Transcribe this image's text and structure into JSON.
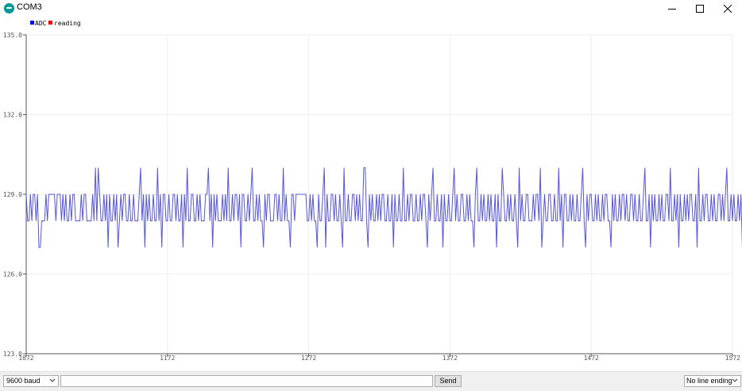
{
  "window": {
    "title": "COM3",
    "icon": "arduino-icon",
    "controls": [
      "minimize-icon",
      "maximize-icon",
      "close-icon"
    ]
  },
  "legend": {
    "items": [
      {
        "label": "ADC",
        "color": "#0000ff"
      },
      {
        "label": "reading",
        "color": "#ff0000"
      }
    ]
  },
  "chart_data": {
    "type": "line",
    "ylim": [
      123.0,
      135.0
    ],
    "xlim": [
      1072,
      1572
    ],
    "yticks": [
      "135.0",
      "132.0",
      "129.0",
      "126.0",
      "123.0"
    ],
    "ytick_values": [
      135,
      132,
      129,
      126,
      123
    ],
    "xticks": [
      "1072",
      "1172",
      "1272",
      "1372",
      "1472",
      "1572"
    ],
    "xtick_values": [
      1072,
      1172,
      1272,
      1372,
      1472,
      1572
    ],
    "grid": true,
    "legend_position": "top-left",
    "series": [
      {
        "name": "ADC",
        "color": "#5555dd",
        "x_start": 1072,
        "x_step": 1,
        "values": [
          129,
          128,
          128,
          129,
          128,
          129,
          129,
          128,
          129,
          127,
          127,
          128,
          128,
          128,
          129,
          128,
          129,
          129,
          129,
          129,
          129,
          128,
          129,
          129,
          129,
          128,
          129,
          128,
          129,
          128,
          128,
          129,
          128,
          129,
          129,
          128,
          128,
          128,
          128,
          129,
          128,
          129,
          129,
          128,
          128,
          128,
          128,
          129,
          128,
          130,
          128,
          130,
          129,
          128,
          128,
          129,
          128,
          129,
          127,
          129,
          128,
          128,
          129,
          128,
          129,
          127,
          128,
          129,
          128,
          129,
          129,
          128,
          128,
          129,
          128,
          128,
          129,
          128,
          128,
          128,
          129,
          130,
          128,
          129,
          127,
          129,
          128,
          129,
          128,
          128,
          129,
          128,
          128,
          130,
          128,
          129,
          127,
          129,
          129,
          128,
          128,
          129,
          128,
          128,
          129,
          129,
          128,
          129,
          128,
          128,
          129,
          127,
          129,
          128,
          130,
          128,
          128,
          129,
          129,
          128,
          128,
          129,
          128,
          129,
          128,
          128,
          128,
          129,
          129,
          130,
          128,
          129,
          127,
          129,
          128,
          129,
          128,
          128,
          128,
          129,
          128,
          129,
          128,
          130,
          128,
          128,
          129,
          128,
          129,
          129,
          128,
          129,
          127,
          129,
          129,
          128,
          128,
          129,
          128,
          129,
          130,
          128,
          128,
          129,
          128,
          129,
          128,
          128,
          127,
          129,
          128,
          129,
          129,
          128,
          128,
          128,
          129,
          129,
          128,
          129,
          128,
          128,
          130,
          128,
          129,
          128,
          128,
          127,
          129,
          129,
          128,
          129,
          129,
          129,
          129,
          129,
          129,
          129,
          129,
          128,
          128,
          129,
          128,
          129,
          128,
          128,
          127,
          129,
          128,
          128,
          129,
          130,
          127,
          129,
          128,
          128,
          129,
          129,
          128,
          129,
          128,
          128,
          129,
          128,
          127,
          130,
          128,
          128,
          129,
          128,
          128,
          129,
          129,
          128,
          129,
          128,
          129,
          128,
          128,
          130,
          130,
          128,
          127,
          129,
          128,
          129,
          128,
          128,
          129,
          128,
          129,
          128,
          129,
          129,
          128,
          128,
          129,
          128,
          128,
          129,
          127,
          129,
          128,
          128,
          129,
          128,
          128,
          130,
          128,
          128,
          129,
          128,
          129,
          129,
          128,
          128,
          129,
          128,
          128,
          129,
          128,
          129,
          129,
          128,
          127,
          129,
          128,
          129,
          130,
          128,
          128,
          129,
          128,
          128,
          129,
          127,
          129,
          128,
          128,
          129,
          128,
          128,
          129,
          130,
          128,
          129,
          128,
          128,
          129,
          129,
          128,
          128,
          129,
          128,
          129,
          128,
          128,
          127,
          129,
          130,
          128,
          128,
          129,
          128,
          129,
          128,
          128,
          129,
          128,
          129,
          128,
          128,
          129,
          127,
          129,
          128,
          128,
          130,
          129,
          128,
          128,
          129,
          128,
          129,
          128,
          128,
          129,
          128,
          127,
          130,
          128,
          129,
          128,
          128,
          129,
          129,
          128,
          128,
          128,
          129,
          128,
          129,
          129,
          128,
          130,
          127,
          128,
          129,
          128,
          128,
          129,
          129,
          128,
          128,
          129,
          128,
          128,
          130,
          128,
          129,
          127,
          129,
          129,
          128,
          128,
          129,
          128,
          129,
          128,
          128,
          129,
          128,
          128,
          129,
          130,
          128,
          127,
          129,
          128,
          129,
          129,
          128,
          128,
          129,
          128,
          129,
          128,
          128,
          129,
          128,
          129,
          129,
          128,
          128,
          127,
          129,
          128,
          129,
          128,
          128,
          129,
          128,
          129,
          129,
          128,
          129,
          128,
          128,
          129,
          129,
          128,
          129,
          128,
          128,
          129,
          128,
          128,
          129,
          130,
          128,
          128,
          129,
          127,
          129,
          128,
          129,
          128,
          128,
          129,
          128,
          129,
          128,
          128,
          129,
          129,
          128,
          130,
          128,
          128,
          129,
          128,
          129,
          127,
          129,
          128,
          128,
          129,
          128,
          129,
          128,
          129,
          129,
          128,
          128,
          129,
          127,
          130,
          128,
          128,
          129,
          128,
          129,
          129,
          128,
          128,
          129,
          128,
          129,
          128,
          128,
          129,
          129,
          128,
          129,
          128,
          129,
          130,
          128,
          128,
          129,
          128,
          129,
          128,
          128,
          129,
          128,
          129,
          127,
          129,
          128,
          128,
          129,
          129,
          128,
          128,
          129,
          129,
          128,
          128,
          127,
          129
        ]
      }
    ]
  },
  "footer": {
    "baud": "9600 baud",
    "send": "Send",
    "line_ending": "No line ending",
    "input_value": ""
  }
}
